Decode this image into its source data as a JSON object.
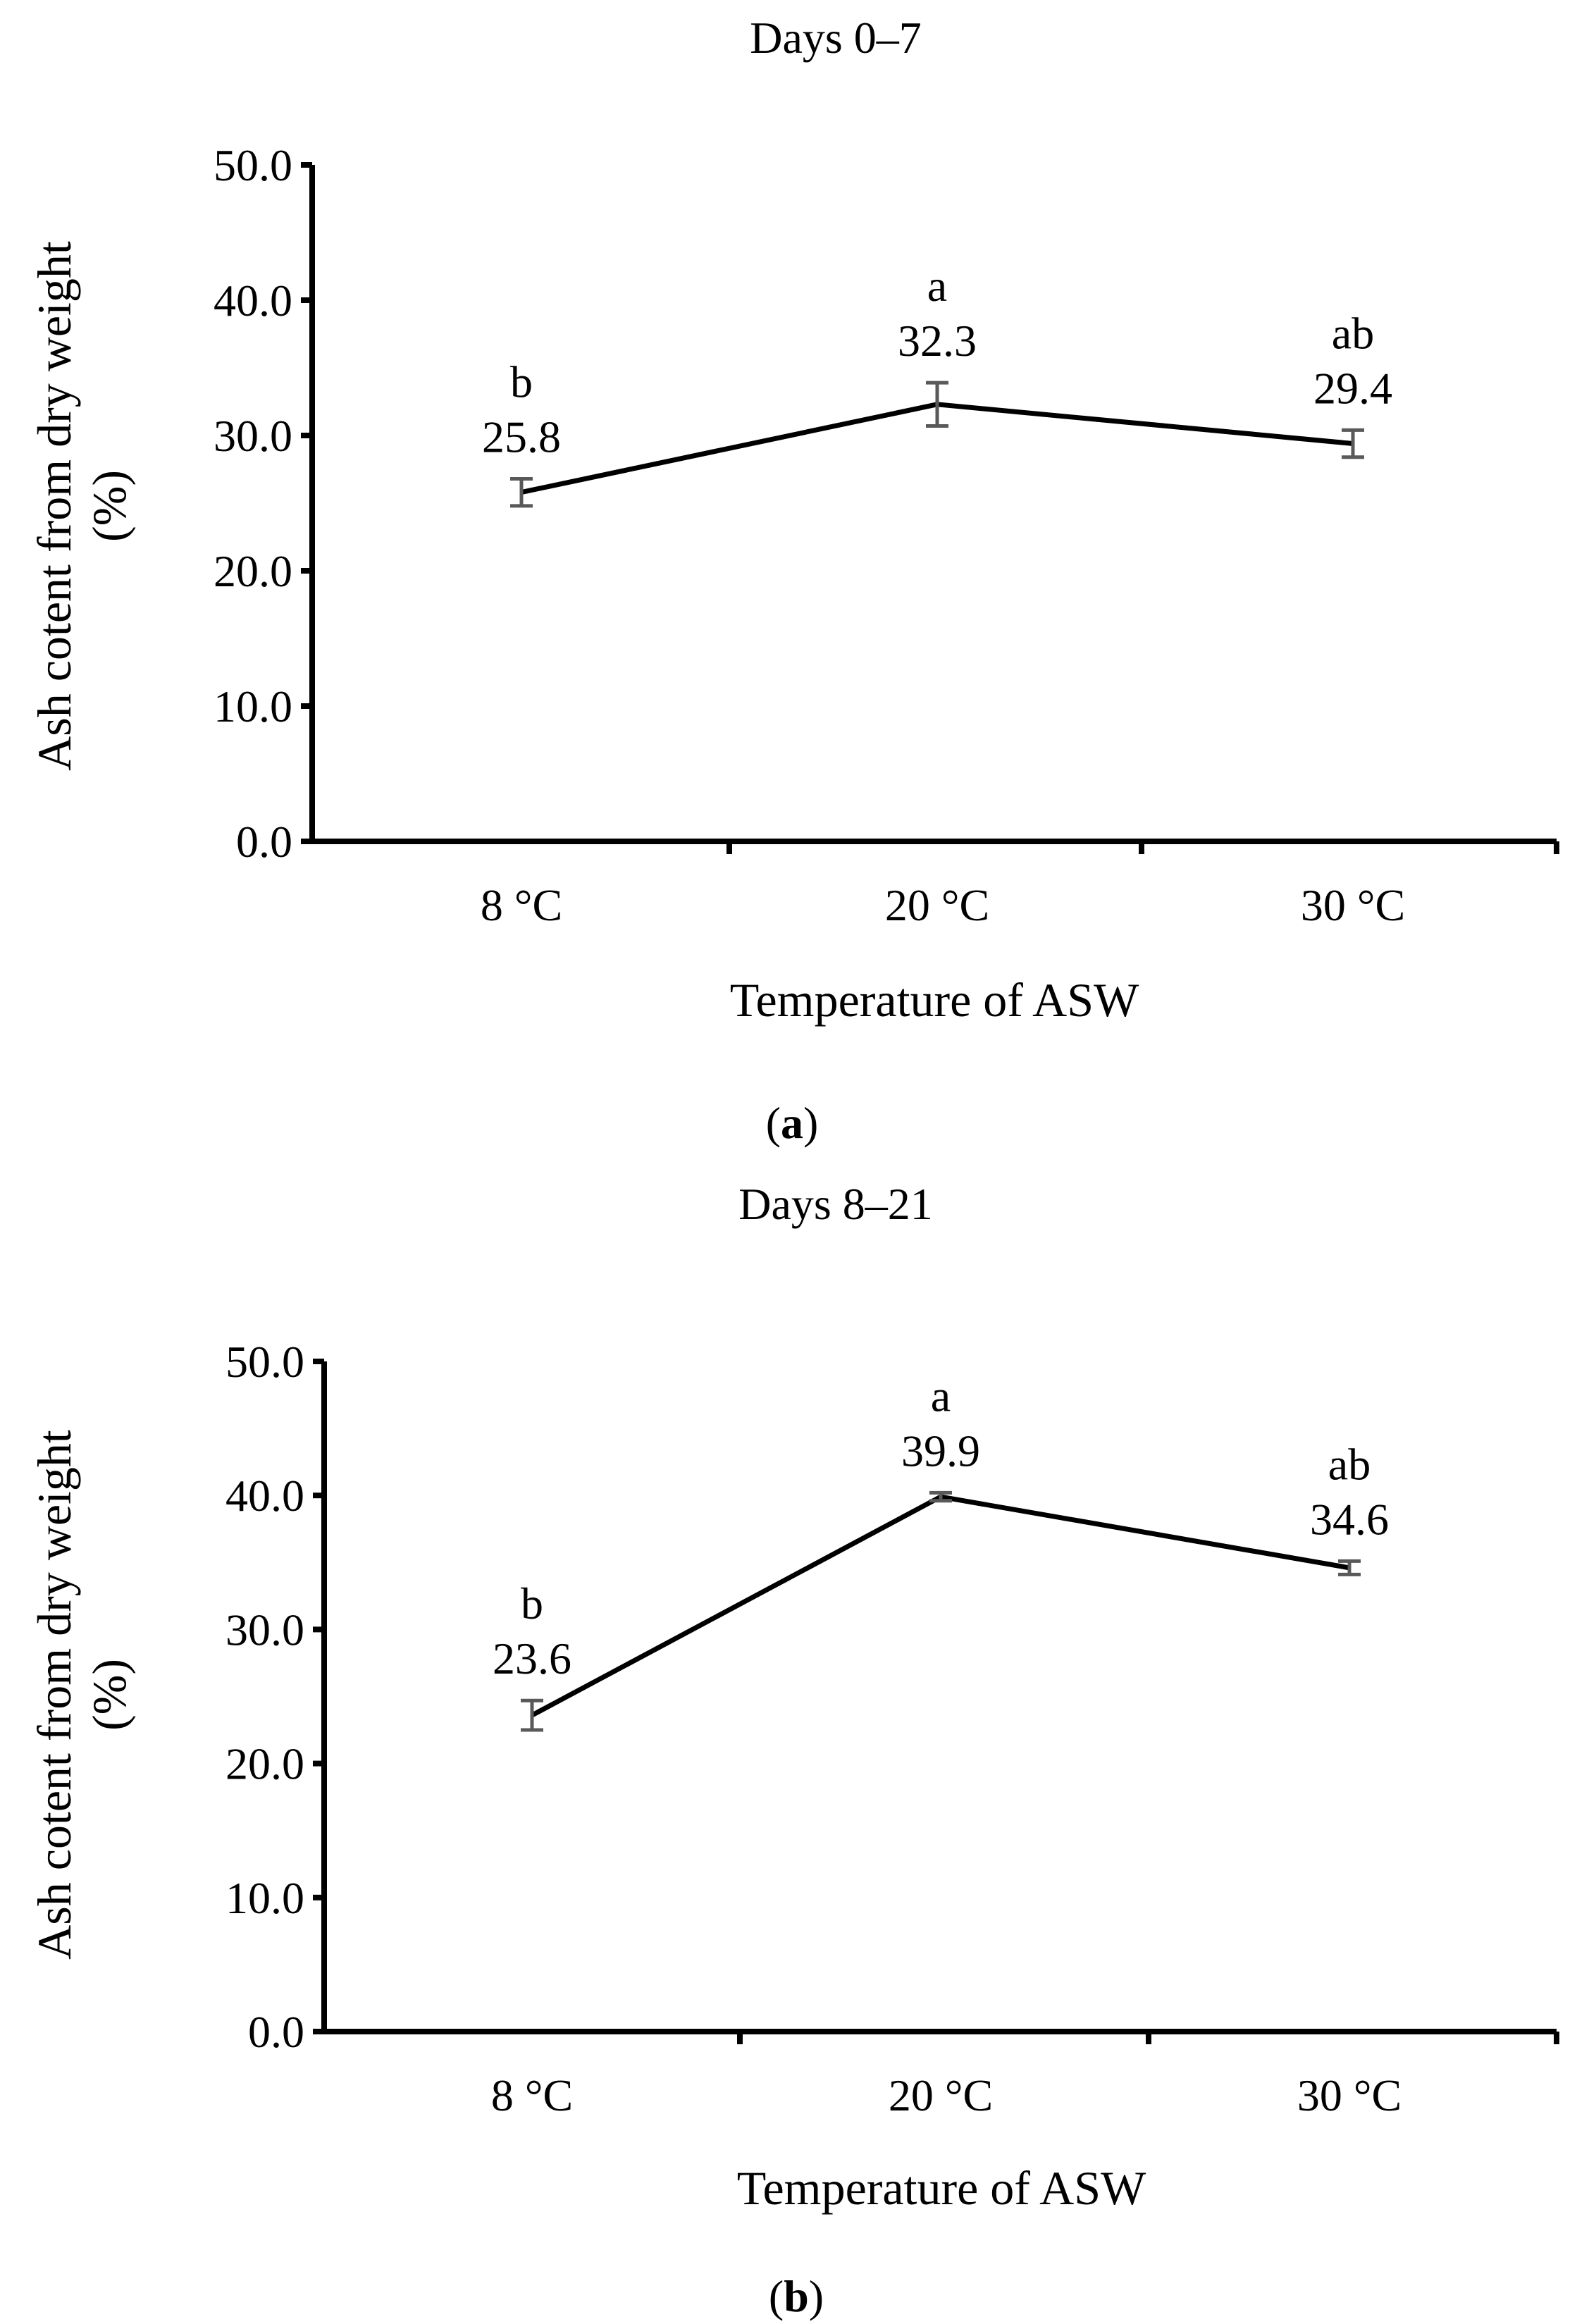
{
  "chart_data": [
    {
      "type": "line",
      "title": "Days 0–7",
      "xlabel": "Temperature of ASW",
      "ylabel_line1": "Ash cotent from dry weight",
      "ylabel_line2": "(%)",
      "categories": [
        "8  °C",
        "20  °C",
        "30 °C"
      ],
      "values": [
        25.8,
        32.3,
        29.4
      ],
      "value_labels": [
        "25.8",
        "32.3",
        "29.4"
      ],
      "errors": [
        1.0,
        1.6,
        1.0
      ],
      "group_letters": [
        "b",
        "a",
        "ab"
      ],
      "ylim": [
        0,
        50
      ],
      "yticks": [
        "0.0",
        "10.0",
        "20.0",
        "30.0",
        "40.0",
        "50.0"
      ],
      "panel_letter": "a",
      "grid": false,
      "line_color": "#000000",
      "error_color": "#595959"
    },
    {
      "type": "line",
      "title": "Days 8–21",
      "xlabel": "Temperature of ASW",
      "ylabel_line1": "Ash cotent from dry weight",
      "ylabel_line2": "(%)",
      "categories": [
        "8  °C",
        "20  °C",
        "30 °C"
      ],
      "values": [
        23.6,
        39.9,
        34.6
      ],
      "value_labels": [
        "23.6",
        "39.9",
        "34.6"
      ],
      "errors": [
        1.1,
        0.3,
        0.5
      ],
      "group_letters": [
        "b",
        "a",
        "ab"
      ],
      "ylim": [
        0,
        50
      ],
      "yticks": [
        "0.0",
        "10.0",
        "20.0",
        "30.0",
        "40.0",
        "50.0"
      ],
      "panel_letter": "b",
      "grid": false,
      "line_color": "#000000",
      "error_color": "#595959"
    }
  ]
}
